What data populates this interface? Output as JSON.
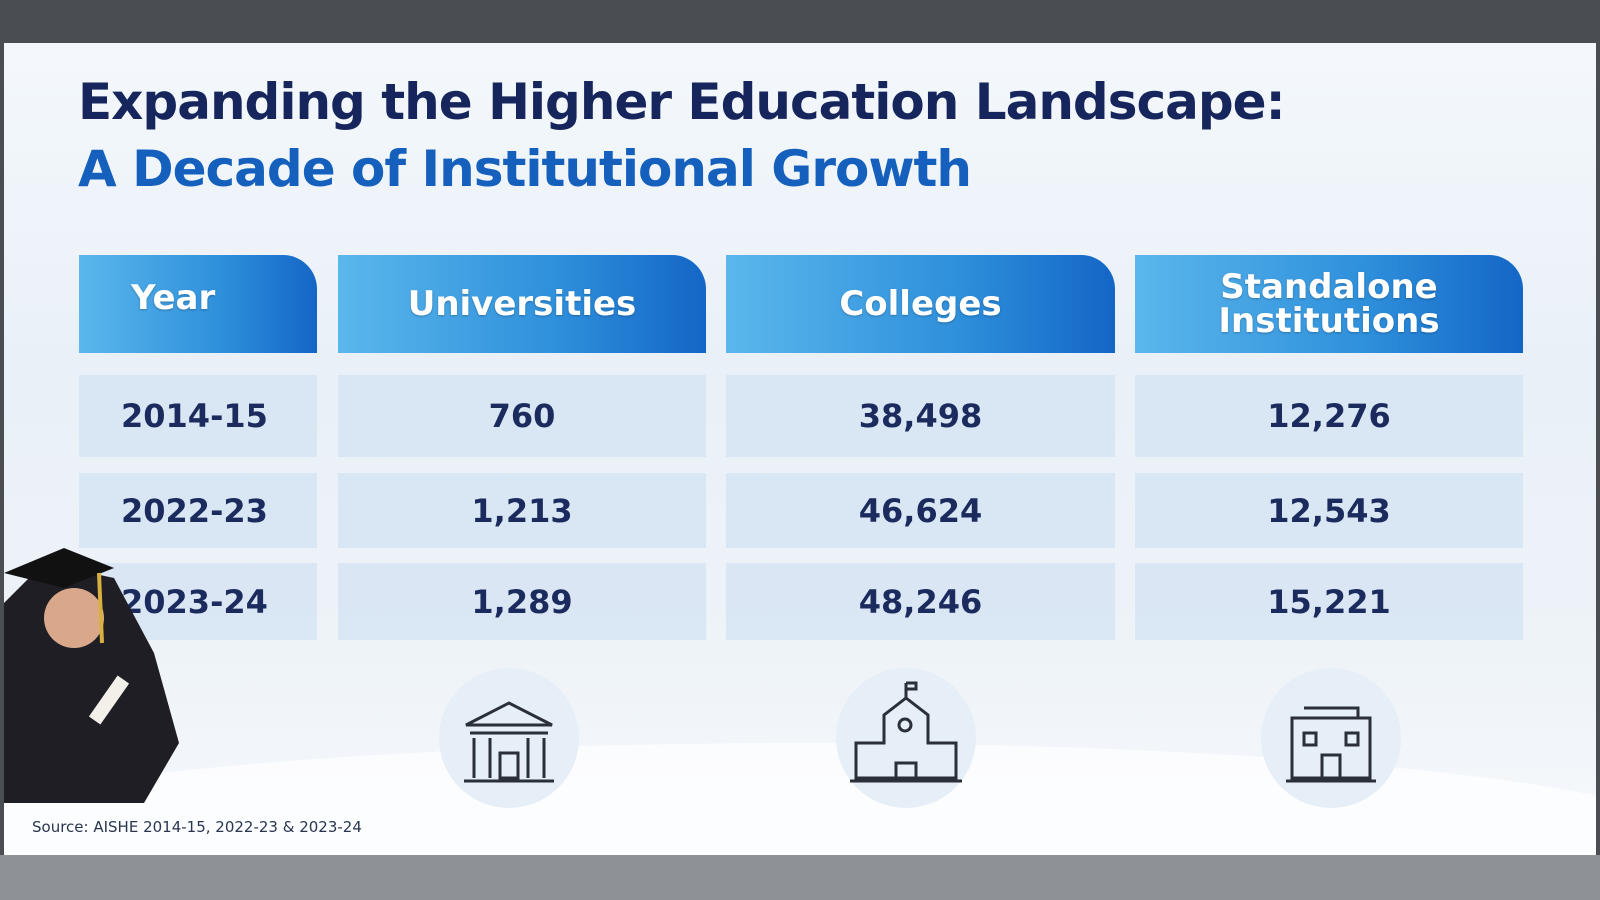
{
  "header": {
    "title": "Expanding the Higher Education Landscape:",
    "subtitle": "A Decade of Institutional Growth"
  },
  "table": {
    "columns": [
      "Year",
      "Universities",
      "Colleges",
      "Standalone Institutions"
    ],
    "rows": [
      [
        "2014-15",
        "760",
        "38,498",
        "12,276"
      ],
      [
        "2022-23",
        "1,213",
        "46,624",
        "12,543"
      ],
      [
        "2023-24",
        "1,289",
        "48,246",
        "15,221"
      ]
    ]
  },
  "footer": {
    "source": "Source: AISHE 2014-15, 2022-23 & 2023-24"
  }
}
